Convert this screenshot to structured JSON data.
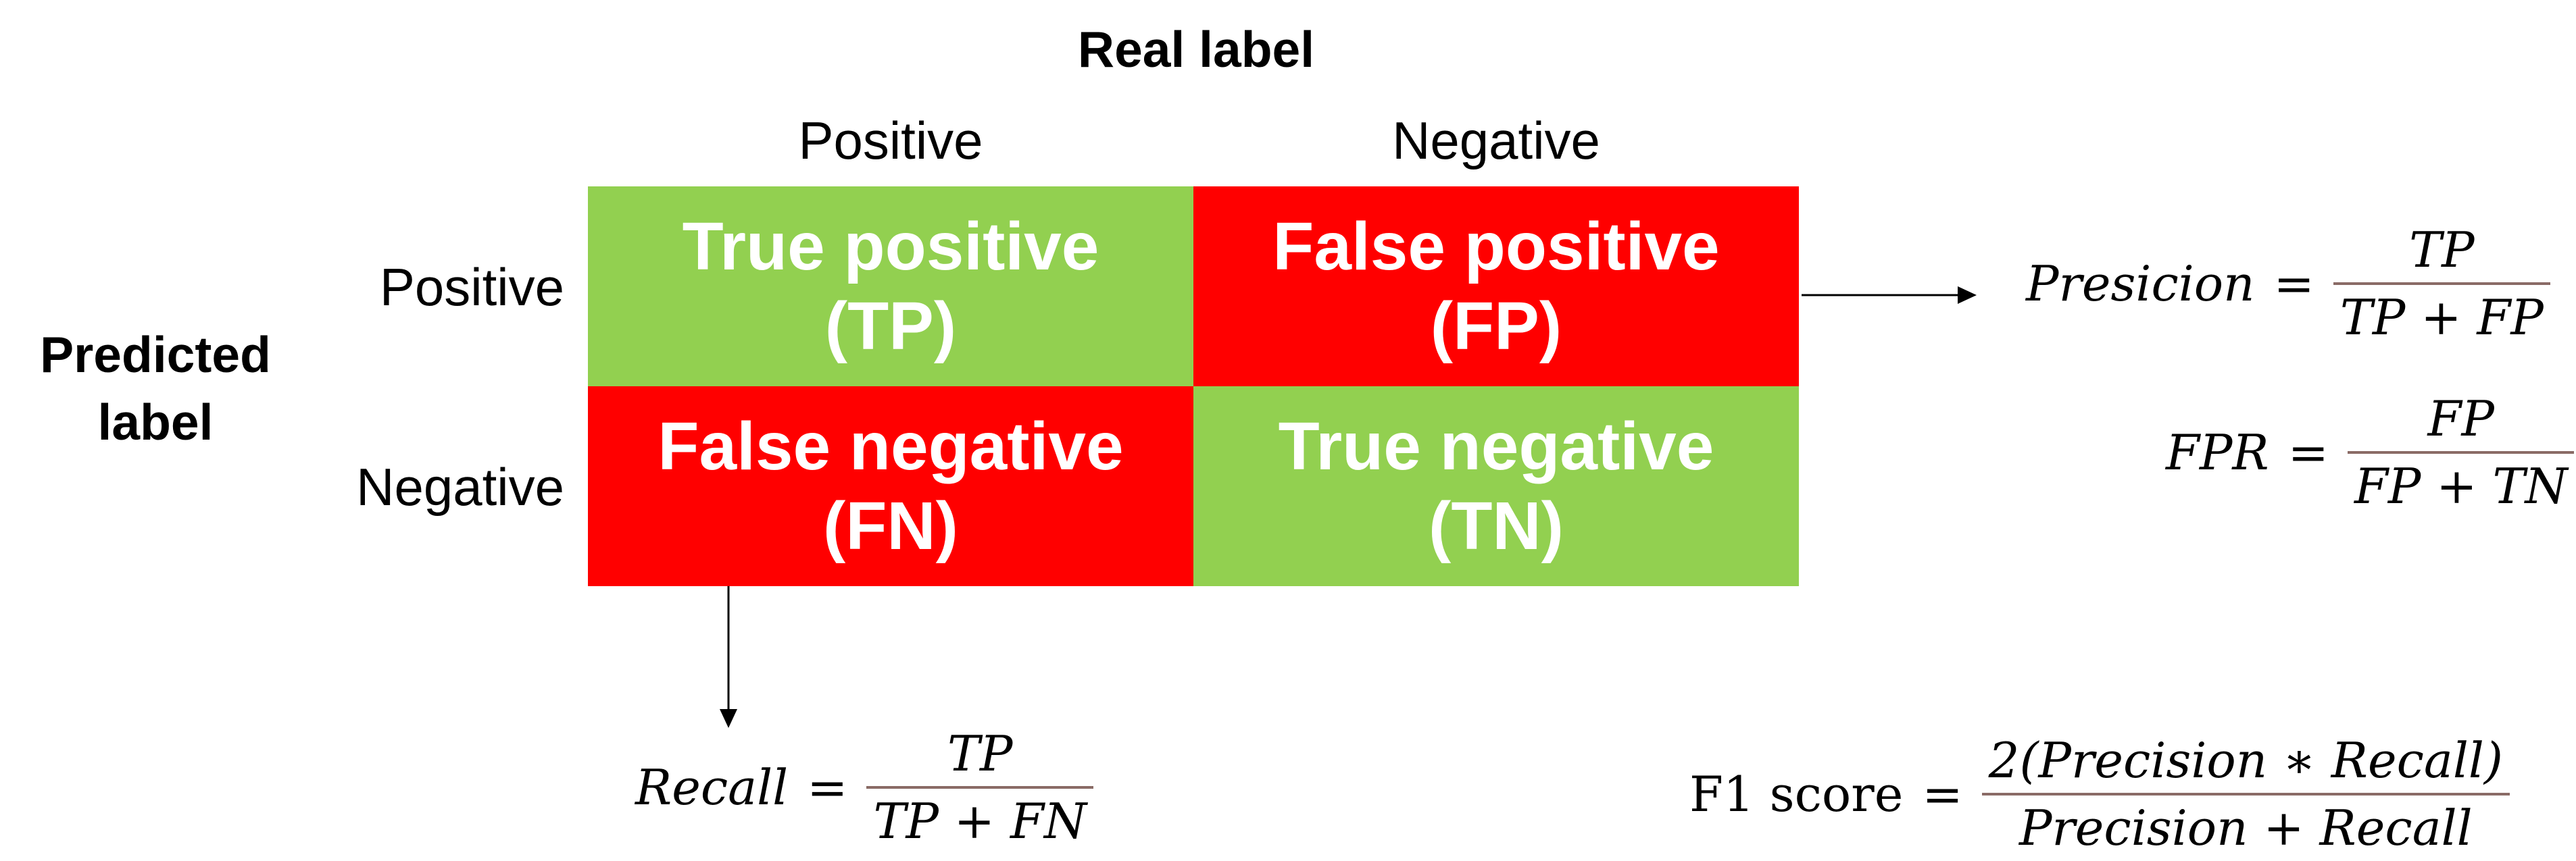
{
  "header": {
    "real_label": "Real label",
    "predicted_label": [
      "Predicted",
      "label"
    ]
  },
  "columns": [
    "Positive",
    "Negative"
  ],
  "rows": [
    "Positive",
    "Negative"
  ],
  "cells": {
    "tp": [
      "True positive",
      "(TP)"
    ],
    "fp": [
      "False positive",
      "(FP)"
    ],
    "fn": [
      "False negative",
      "(FN)"
    ],
    "tn": [
      "True negative",
      "(TN)"
    ]
  },
  "colors": {
    "true_cell": "#92d050",
    "false_cell": "#ff0000",
    "cell_text": "#ffffff",
    "fraction_bar": "#8a6b66"
  },
  "formulas": {
    "precision": {
      "lhs": "Presicion",
      "eq": "=",
      "num": "TP",
      "den": "TP + FP"
    },
    "fpr": {
      "lhs": "FPR",
      "eq": "=",
      "num": "FP",
      "den": "FP + TN"
    },
    "recall": {
      "lhs": "Recall",
      "eq": "=",
      "num": "TP",
      "den": "TP + FN"
    },
    "f1": {
      "lhs": "F1 score",
      "eq": "=",
      "num": "2(Precision  ∗ Recall)",
      "den": "Precision + Recall"
    }
  }
}
